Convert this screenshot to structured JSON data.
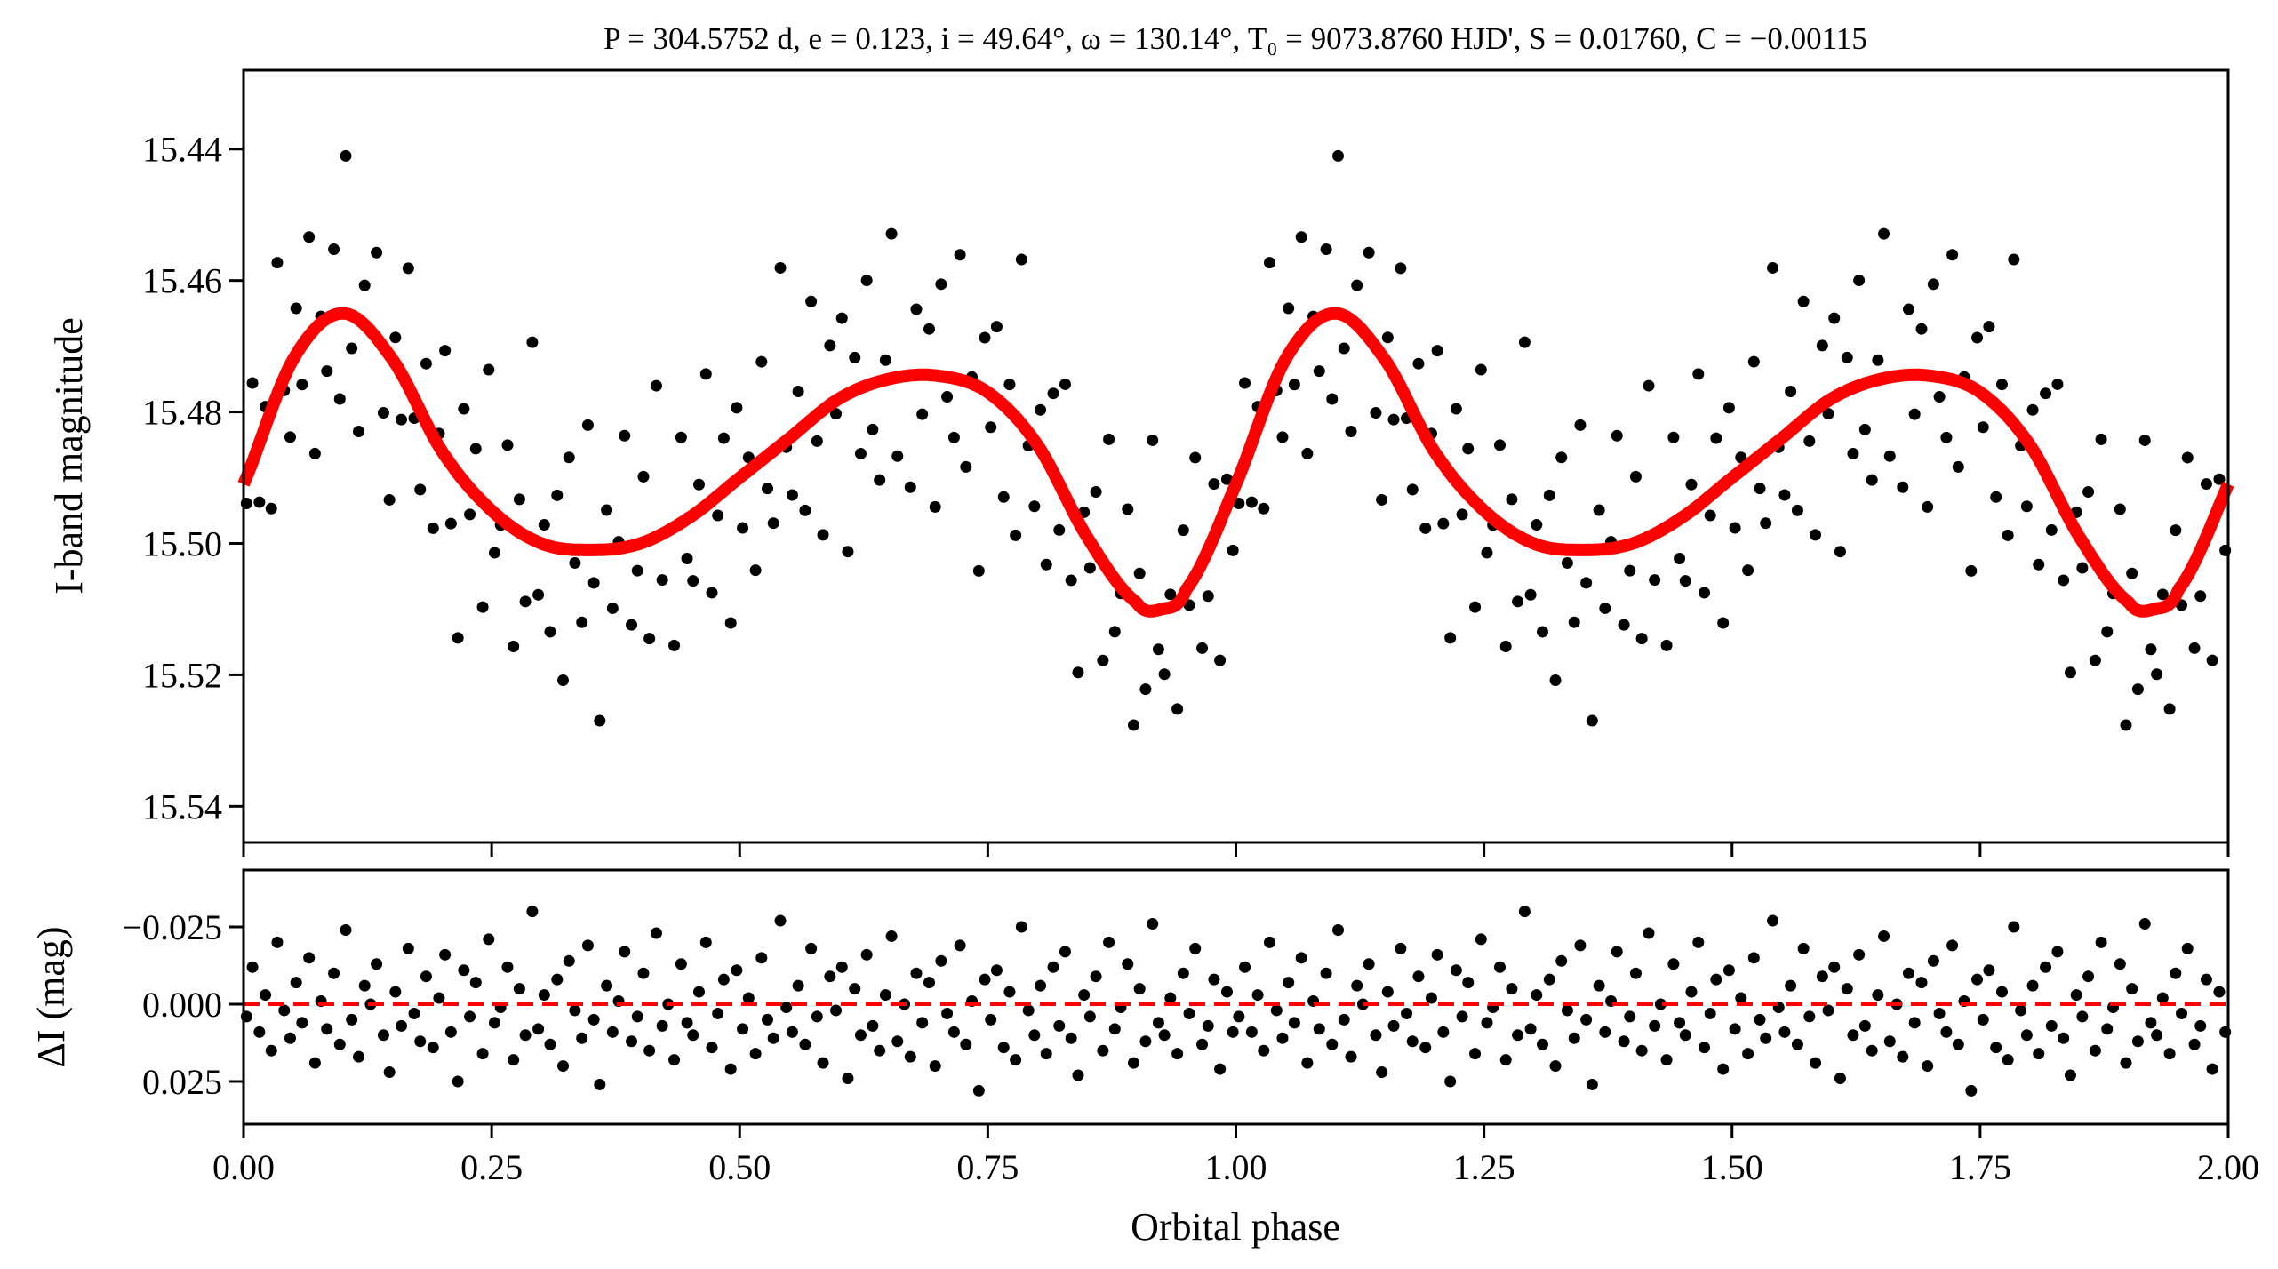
{
  "chart_data": [
    {
      "type": "scatter",
      "panel": "top",
      "title": "P = 304.5752 d, e = 0.123, i = 49.64°, ω = 130.14°, T₀ = 9073.8760 HJD', S = 0.01760, C = −0.00115",
      "xlabel": "",
      "ylabel": "I-band magnitude",
      "xlim": [
        0,
        2
      ],
      "ylim": [
        15.5455,
        15.428
      ],
      "y_inverted": true,
      "yticks": [
        "15.44",
        "15.46",
        "15.48",
        "15.50",
        "15.52",
        "15.54"
      ],
      "ytick_values": [
        15.44,
        15.46,
        15.48,
        15.5,
        15.52,
        15.54
      ],
      "xtick_values": [
        0,
        0.25,
        0.5,
        0.75,
        1.0,
        1.25,
        1.5,
        1.75,
        2.0
      ],
      "grid": false,
      "model_curve": {
        "color": "#ff0000",
        "phase": [
          0.0,
          0.05,
          0.1,
          0.15,
          0.2,
          0.25,
          0.3,
          0.35,
          0.4,
          0.45,
          0.5,
          0.55,
          0.6,
          0.65,
          0.7,
          0.75,
          0.8,
          0.85,
          0.9,
          0.925,
          0.95,
          1.0
        ],
        "mag": [
          15.491,
          15.472,
          15.465,
          15.472,
          15.486,
          15.495,
          15.5,
          15.501,
          15.5,
          15.496,
          15.49,
          15.484,
          15.478,
          15.475,
          15.4745,
          15.477,
          15.485,
          15.499,
          15.509,
          15.51,
          15.507,
          15.491
        ],
        "repeats_every_phase": 1
      },
      "points_color": "#000000",
      "note_points": "observed magnitude = model + residual (see residual panel), shown over two cycles"
    },
    {
      "type": "scatter",
      "panel": "bottom",
      "xlabel": "Orbital phase",
      "ylabel": "ΔI (mag)",
      "xlim": [
        0,
        2
      ],
      "ylim": [
        0.0388,
        -0.0434
      ],
      "y_inverted": true,
      "yticks": [
        "−0.025",
        "0.000",
        "0.025"
      ],
      "ytick_values": [
        -0.025,
        0.0,
        0.025
      ],
      "xticks": [
        "0.00",
        "0.25",
        "0.50",
        "0.75",
        "1.00",
        "1.25",
        "1.50",
        "1.75",
        "2.00"
      ],
      "xtick_values": [
        0,
        0.25,
        0.5,
        0.75,
        1.0,
        1.25,
        1.5,
        1.75,
        2.0
      ],
      "zero_line": {
        "value": 0,
        "color": "#ff0000",
        "style": "dashed"
      },
      "grid": false,
      "phase": [
        0.003,
        0.009,
        0.016,
        0.022,
        0.028,
        0.034,
        0.041,
        0.047,
        0.053,
        0.059,
        0.066,
        0.072,
        0.078,
        0.084,
        0.091,
        0.097,
        0.103,
        0.109,
        0.116,
        0.122,
        0.128,
        0.134,
        0.141,
        0.147,
        0.153,
        0.159,
        0.166,
        0.172,
        0.178,
        0.184,
        0.191,
        0.197,
        0.203,
        0.209,
        0.216,
        0.222,
        0.228,
        0.234,
        0.241,
        0.247,
        0.253,
        0.259,
        0.266,
        0.272,
        0.278,
        0.284,
        0.291,
        0.297,
        0.303,
        0.309,
        0.316,
        0.322,
        0.328,
        0.334,
        0.341,
        0.347,
        0.353,
        0.359,
        0.366,
        0.372,
        0.378,
        0.384,
        0.391,
        0.397,
        0.403,
        0.409,
        0.416,
        0.422,
        0.428,
        0.434,
        0.441,
        0.447,
        0.453,
        0.459,
        0.466,
        0.472,
        0.478,
        0.484,
        0.491,
        0.497,
        0.503,
        0.509,
        0.516,
        0.522,
        0.528,
        0.534,
        0.541,
        0.547,
        0.553,
        0.559,
        0.566,
        0.572,
        0.578,
        0.584,
        0.591,
        0.597,
        0.603,
        0.609,
        0.616,
        0.622,
        0.628,
        0.634,
        0.641,
        0.647,
        0.653,
        0.659,
        0.666,
        0.672,
        0.678,
        0.684,
        0.691,
        0.697,
        0.703,
        0.709,
        0.716,
        0.722,
        0.728,
        0.734,
        0.741,
        0.747,
        0.753,
        0.759,
        0.766,
        0.772,
        0.778,
        0.784,
        0.791,
        0.797,
        0.803,
        0.809,
        0.816,
        0.822,
        0.828,
        0.834,
        0.841,
        0.847,
        0.853,
        0.859,
        0.866,
        0.872,
        0.878,
        0.884,
        0.891,
        0.897,
        0.903,
        0.909,
        0.916,
        0.922,
        0.928,
        0.934,
        0.941,
        0.947,
        0.953,
        0.959,
        0.966,
        0.972,
        0.978,
        0.984,
        0.991,
        0.997
      ],
      "residual": [
        0.004,
        -0.012,
        0.009,
        -0.003,
        0.015,
        -0.02,
        0.002,
        0.011,
        -0.007,
        0.006,
        -0.015,
        0.019,
        -0.001,
        0.008,
        -0.01,
        0.013,
        -0.024,
        0.005,
        0.017,
        -0.006,
        0.0,
        -0.013,
        0.01,
        0.022,
        -0.004,
        0.007,
        -0.018,
        0.003,
        0.012,
        -0.009,
        0.014,
        -0.002,
        -0.016,
        0.009,
        0.025,
        -0.011,
        0.004,
        -0.007,
        0.016,
        -0.021,
        0.006,
        0.001,
        -0.012,
        0.018,
        -0.005,
        0.01,
        -0.03,
        0.008,
        -0.003,
        0.013,
        -0.008,
        0.02,
        -0.014,
        0.002,
        0.011,
        -0.019,
        0.005,
        0.026,
        -0.006,
        0.009,
        -0.001,
        -0.017,
        0.012,
        0.004,
        -0.01,
        0.015,
        -0.023,
        0.007,
        0.0,
        0.018,
        -0.013,
        0.006,
        0.01,
        -0.004,
        -0.02,
        0.014,
        0.003,
        -0.008,
        0.021,
        -0.011,
        0.008,
        -0.002,
        0.016,
        -0.015,
        0.005,
        0.011,
        -0.027,
        0.001,
        0.009,
        -0.006,
        0.013,
        -0.018,
        0.004,
        0.019,
        -0.009,
        0.002,
        -0.012,
        0.024,
        -0.005,
        0.01,
        -0.016,
        0.007,
        0.015,
        -0.003,
        -0.022,
        0.012,
        0.0,
        0.017,
        -0.01,
        0.006,
        -0.007,
        0.02,
        -0.014,
        0.003,
        0.009,
        -0.019,
        0.013,
        -0.001,
        0.028,
        -0.008,
        0.005,
        -0.011,
        0.014,
        -0.004,
        0.018,
        -0.025,
        0.002,
        0.01,
        -0.006,
        0.016,
        -0.012,
        0.007,
        -0.017,
        0.011,
        0.023,
        -0.003,
        0.004,
        -0.009,
        0.015,
        -0.02,
        0.008,
        0.001,
        -0.013,
        0.019,
        -0.005,
        0.012,
        -0.026,
        0.006,
        0.01,
        -0.002,
        0.016,
        -0.01,
        0.003,
        -0.018,
        0.013,
        0.007,
        -0.008,
        0.021,
        -0.004,
        0.009
      ],
      "points_color": "#000000"
    }
  ]
}
